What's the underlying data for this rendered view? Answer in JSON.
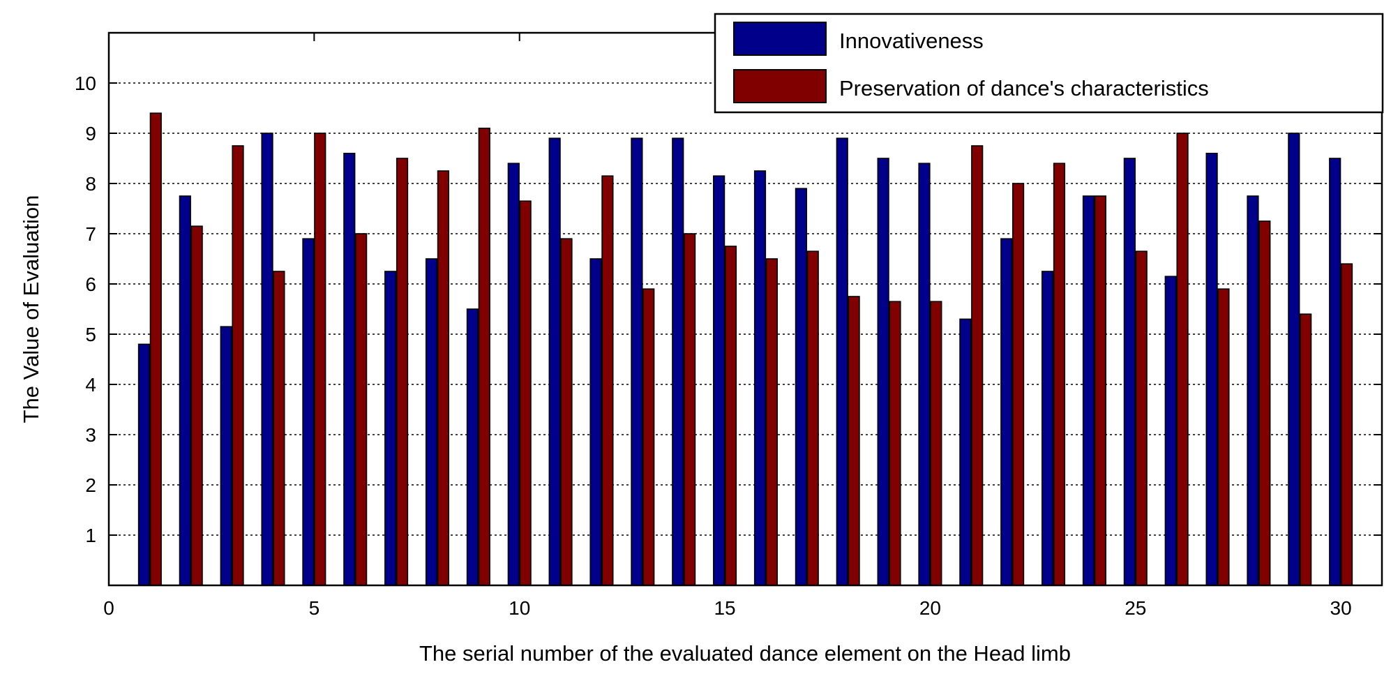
{
  "chart_data": {
    "type": "bar",
    "title": "",
    "xlabel": "The serial number of the evaluated dance element on the Head limb",
    "ylabel": "The Value of Evaluation",
    "xlim": [
      0,
      31
    ],
    "ylim": [
      0,
      11
    ],
    "xticks": [
      0,
      5,
      10,
      15,
      20,
      25,
      30
    ],
    "yticks": [
      1,
      2,
      3,
      4,
      5,
      6,
      7,
      8,
      9,
      10
    ],
    "grid": "dotted",
    "legend_position": "top-right",
    "categories": [
      1,
      2,
      3,
      4,
      5,
      6,
      7,
      8,
      9,
      10,
      11,
      12,
      13,
      14,
      15,
      16,
      17,
      18,
      19,
      20,
      21,
      22,
      23,
      24,
      25,
      26,
      27,
      28,
      29,
      30
    ],
    "series": [
      {
        "name": "Innovativeness",
        "color": "#00008b",
        "values": [
          4.8,
          7.75,
          5.15,
          9.0,
          6.9,
          8.6,
          6.25,
          6.5,
          5.5,
          8.4,
          8.9,
          6.5,
          8.9,
          8.9,
          8.15,
          8.25,
          7.9,
          8.9,
          8.5,
          8.4,
          5.3,
          6.9,
          6.25,
          7.75,
          8.5,
          6.15,
          8.6,
          7.75,
          9.0,
          8.5
        ]
      },
      {
        "name": "Preservation of dance's characteristics",
        "color": "#800000",
        "values": [
          9.4,
          7.15,
          8.75,
          6.25,
          9.0,
          7.0,
          8.5,
          8.25,
          9.1,
          7.65,
          6.9,
          8.15,
          5.9,
          7.0,
          6.75,
          6.5,
          6.65,
          5.75,
          5.65,
          5.65,
          8.75,
          8.0,
          8.4,
          7.75,
          6.65,
          9.0,
          5.9,
          7.25,
          5.4,
          6.4
        ]
      }
    ]
  }
}
